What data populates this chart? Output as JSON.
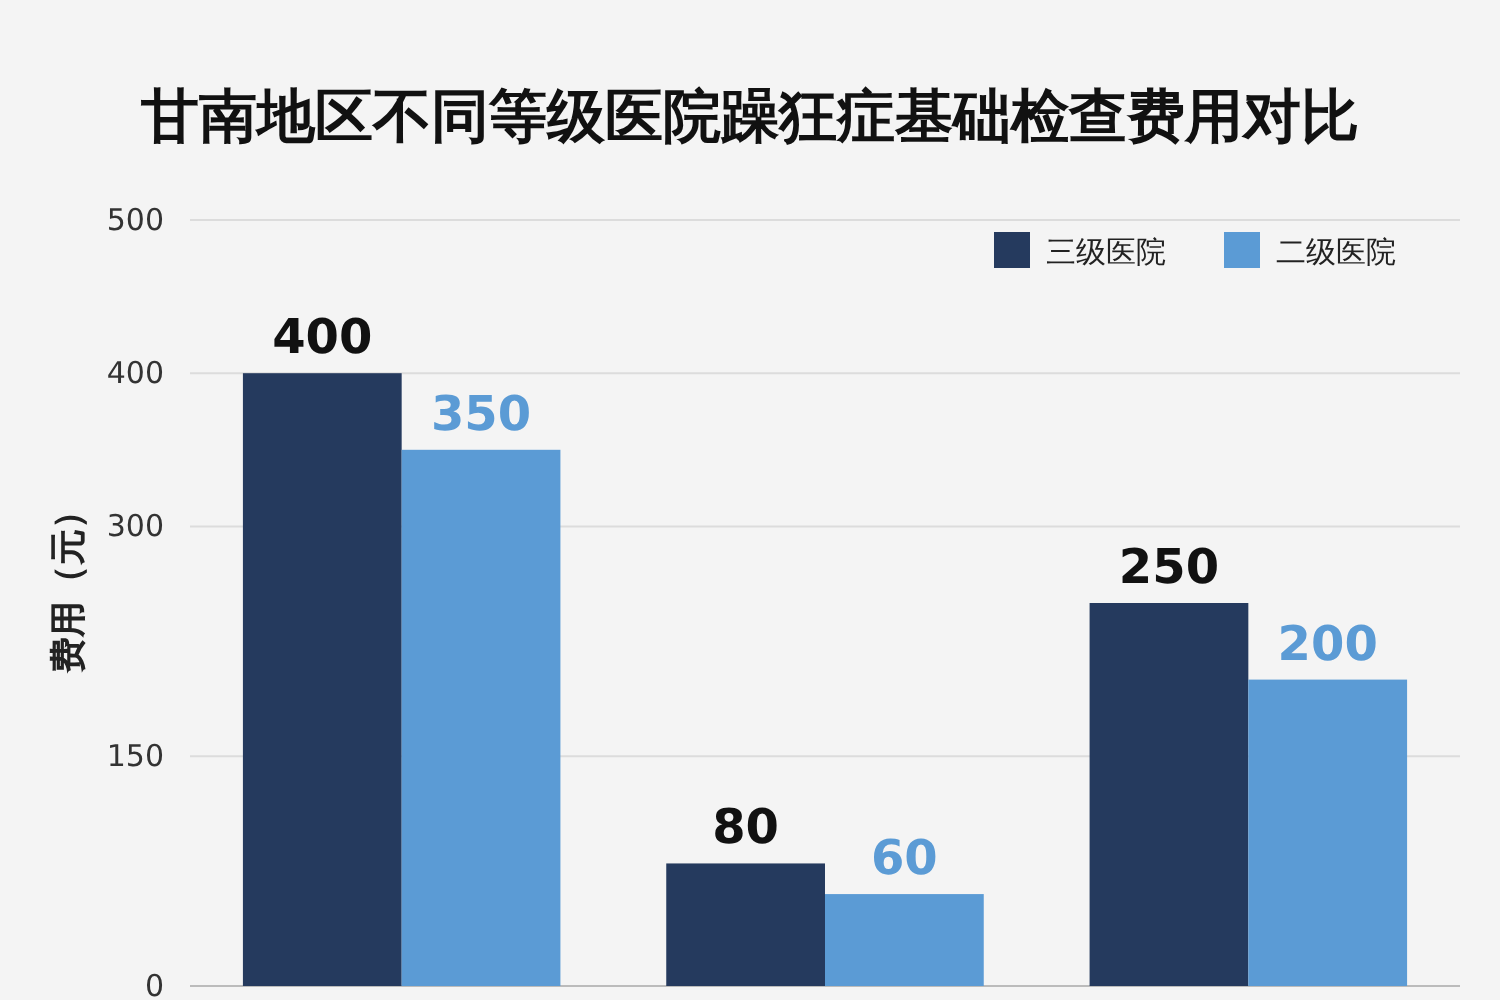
{
  "chart_data": {
    "type": "bar",
    "title": "甘南地区不同等级医院躁狂症基础检查费用对比",
    "ylabel": "费用（元）",
    "categories": [
      null,
      null,
      null
    ],
    "series": [
      {
        "name": "三级医院",
        "color": "#253a5e",
        "values": [
          400,
          80,
          250
        ]
      },
      {
        "name": "二级医院",
        "color": "#5b9bd5",
        "values": [
          350,
          60,
          200
        ]
      }
    ],
    "ylim": [
      0,
      500
    ],
    "yticks": [
      0,
      150,
      300,
      400,
      500
    ],
    "data_labels": true,
    "grid": "y",
    "legend": "top right"
  }
}
